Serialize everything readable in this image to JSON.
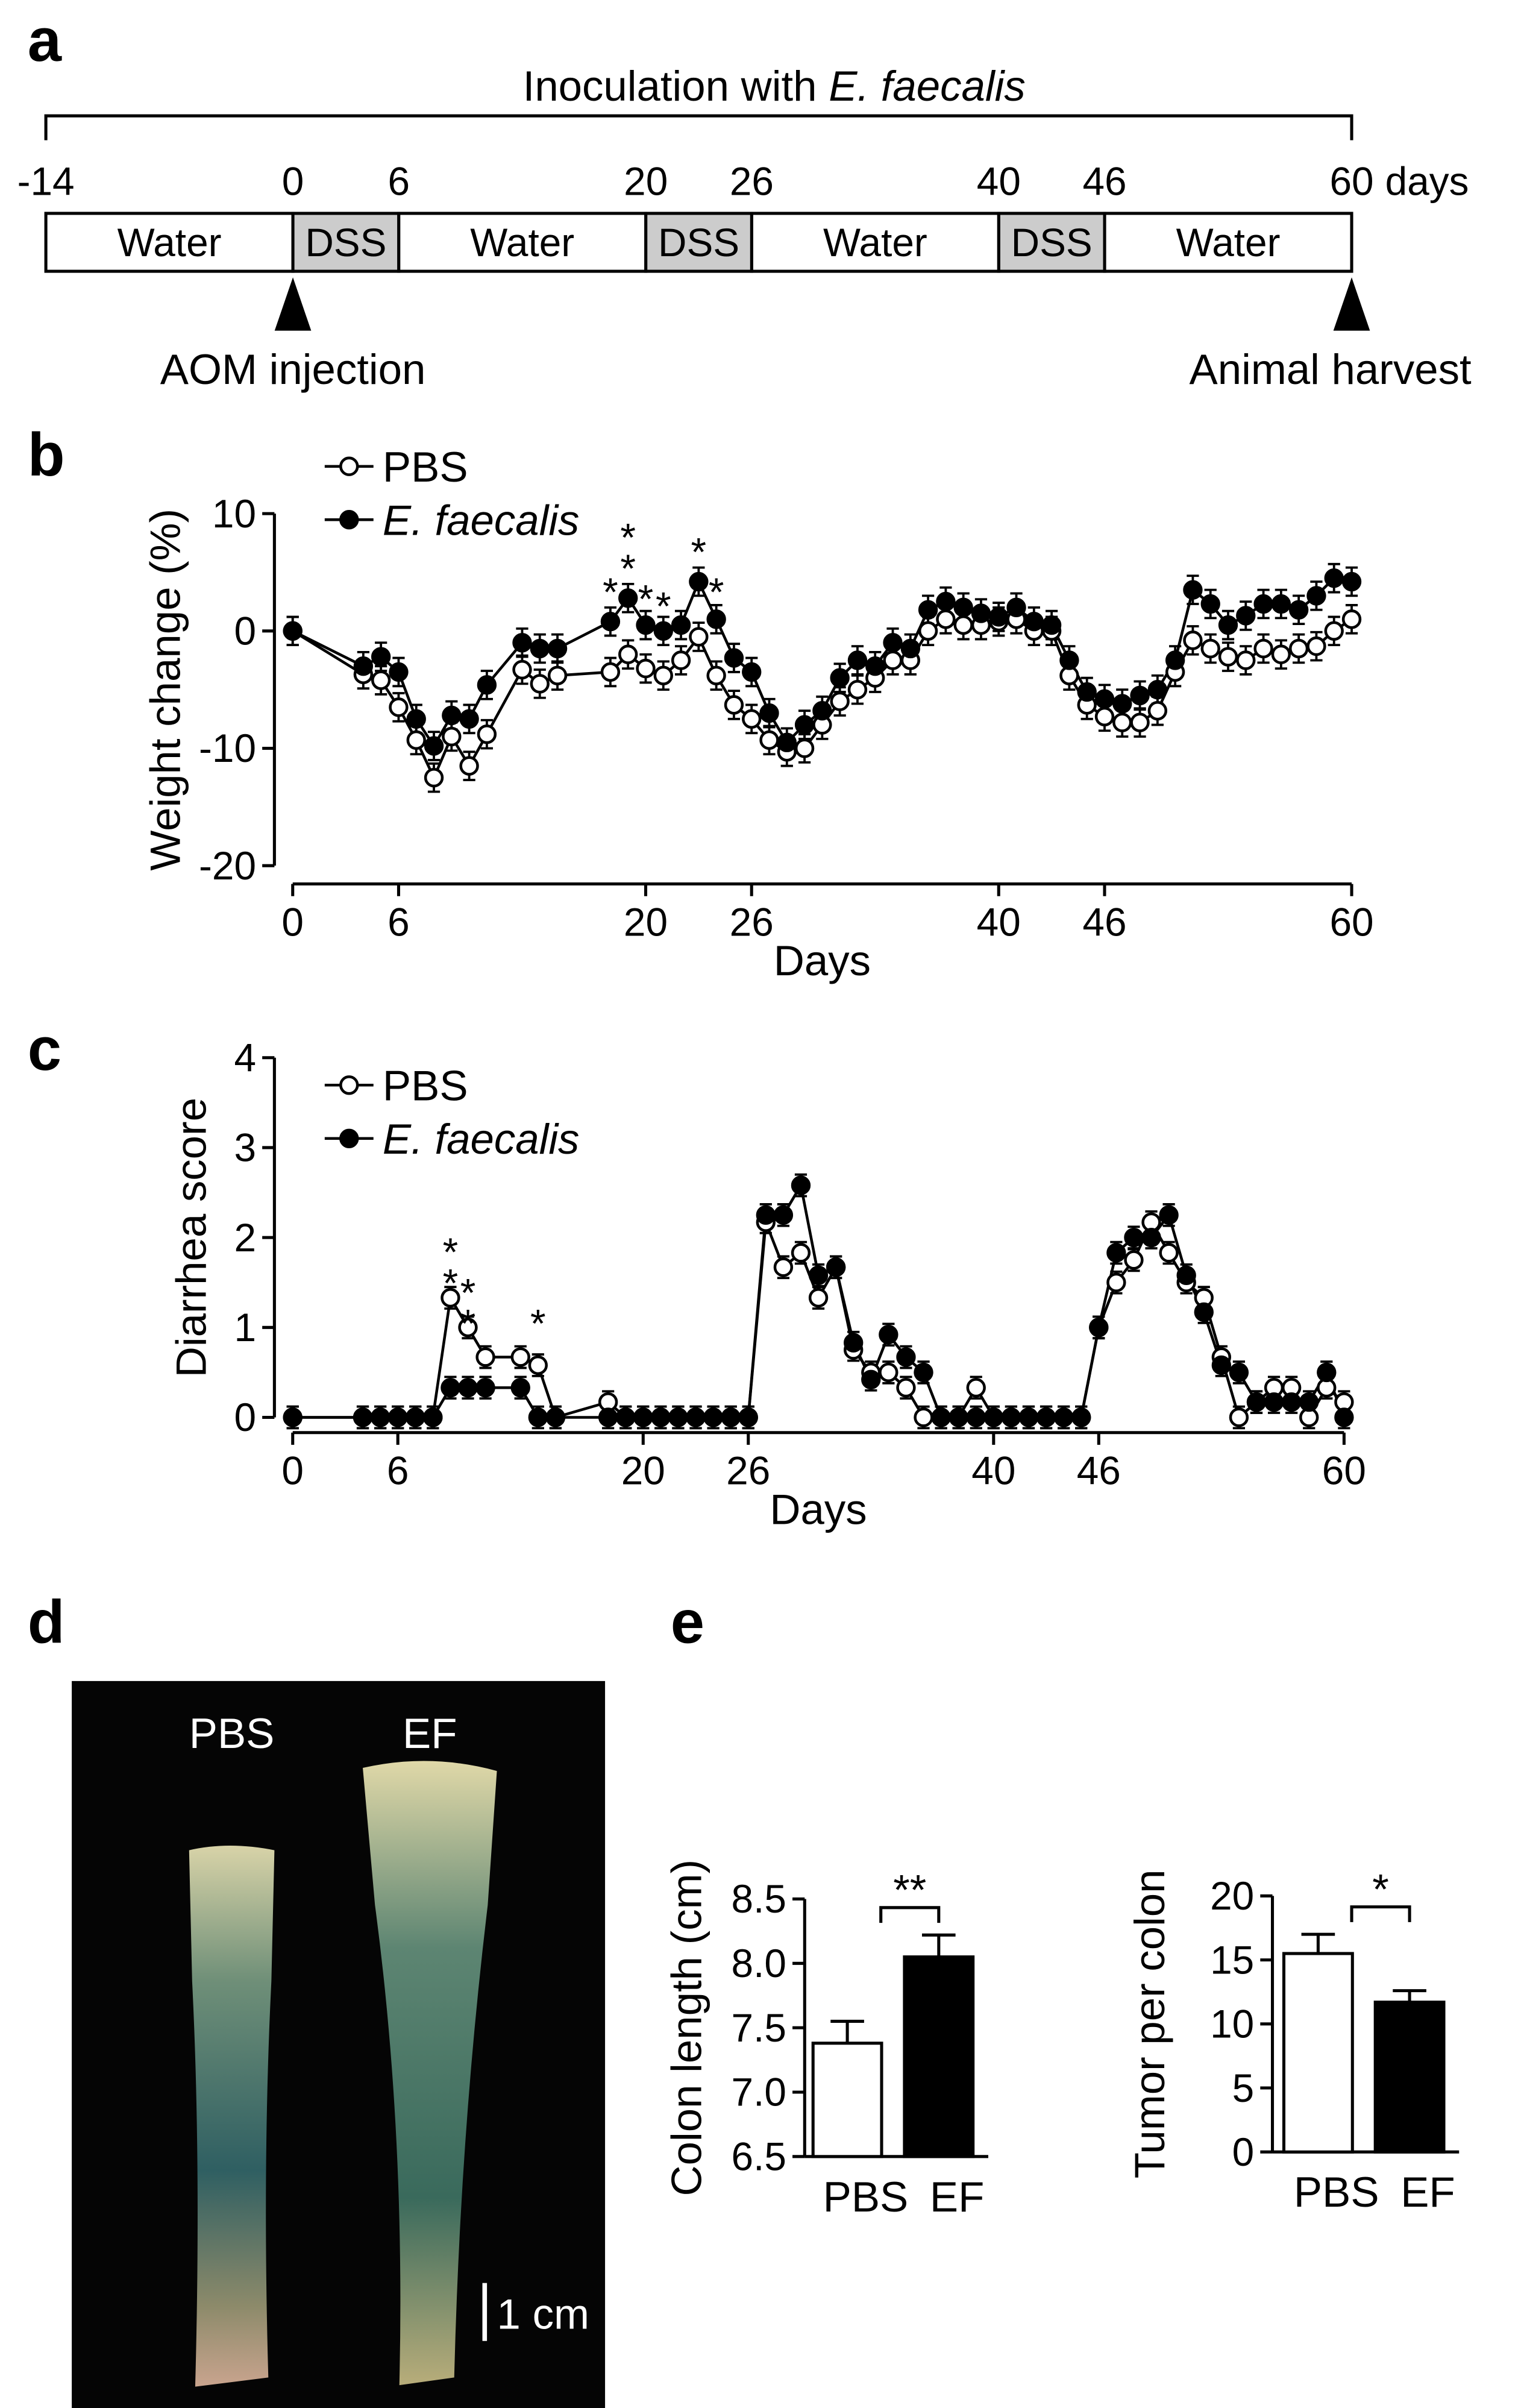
{
  "panel_labels": [
    "a",
    "b",
    "c",
    "d",
    "e"
  ],
  "timeline": {
    "title": "Inoculation with ",
    "title_italic": "E. faecalis",
    "ticks": [
      -14,
      0,
      6,
      20,
      26,
      40,
      46,
      60
    ],
    "unit": "days",
    "segments": [
      {
        "label": "Water",
        "start": -14,
        "end": 0,
        "color": "#ffffff"
      },
      {
        "label": "DSS",
        "start": 0,
        "end": 6,
        "color": "#cccccc"
      },
      {
        "label": "Water",
        "start": 6,
        "end": 20,
        "color": "#ffffff"
      },
      {
        "label": "DSS",
        "start": 20,
        "end": 26,
        "color": "#cccccc"
      },
      {
        "label": "Water",
        "start": 26,
        "end": 40,
        "color": "#ffffff"
      },
      {
        "label": "DSS",
        "start": 40,
        "end": 46,
        "color": "#cccccc"
      },
      {
        "label": "Water",
        "start": 46,
        "end": 60,
        "color": "#ffffff"
      }
    ],
    "events": [
      {
        "label": "AOM injection",
        "day": 0
      },
      {
        "label": "Animal harvest",
        "day": 60
      }
    ]
  },
  "photo": {
    "labels": [
      "PBS",
      "EF"
    ],
    "scale_bar": "1 cm"
  },
  "chart_data": [
    {
      "type": "line",
      "xlabel": "Days",
      "ylabel": "Weight change (%)",
      "x": [
        0,
        4,
        5,
        6,
        7,
        8,
        9,
        10,
        11,
        13,
        14,
        15,
        18,
        19,
        20,
        21,
        22,
        23,
        24,
        25,
        26,
        27,
        28,
        29,
        30,
        31,
        32,
        33,
        34,
        35,
        36,
        37,
        38,
        39,
        40,
        41,
        42,
        43,
        44,
        45,
        46,
        47,
        48,
        49,
        50,
        51,
        52,
        53,
        54,
        55,
        56,
        57,
        58,
        59,
        60
      ],
      "xlim": [
        0,
        60
      ],
      "xticks": [
        0,
        6,
        20,
        26,
        40,
        46,
        60
      ],
      "ylim": [
        -20,
        10
      ],
      "yticks": [
        -20,
        -10,
        0,
        10
      ],
      "legend": "upper left",
      "grid": false,
      "series": [
        {
          "name": "PBS",
          "color": "#ffffff",
          "error": 1.2,
          "values": [
            0,
            -3.7,
            -4.2,
            -6.5,
            -9.3,
            -12.5,
            -9,
            -11.5,
            -8.8,
            -3.3,
            -4.5,
            -3.8,
            -3.5,
            -2,
            -3.2,
            -3.8,
            -2.5,
            -0.5,
            -3.8,
            -6.3,
            -7.5,
            -9.3,
            -10.3,
            -10,
            -8,
            -6,
            -5,
            -4,
            -2.5,
            -2.5,
            0,
            1,
            0.5,
            0.5,
            0.8,
            1,
            0,
            0,
            -3.8,
            -6.3,
            -7.3,
            -7.8,
            -7.8,
            -6.8,
            -3.5,
            -0.8,
            -1.5,
            -2.2,
            -2.5,
            -1.5,
            -2,
            -1.5,
            -1.3,
            0,
            1
          ]
        },
        {
          "name": "E. faecalis",
          "color": "#000000",
          "error": 1.2,
          "values": [
            0,
            -3,
            -2.2,
            -3.5,
            -7.5,
            -9.8,
            -7.2,
            -7.5,
            -4.6,
            -1,
            -1.5,
            -1.5,
            0.8,
            2.8,
            0.5,
            0,
            0.5,
            4.2,
            1,
            -2.3,
            -3.5,
            -7,
            -9.5,
            -8,
            -6.8,
            -4,
            -2.5,
            -3,
            -1,
            -1.5,
            1.8,
            2.5,
            2,
            1.5,
            1.2,
            2,
            0.8,
            0.5,
            -2.5,
            -5.2,
            -5.8,
            -6.2,
            -5.5,
            -5,
            -2.5,
            3.5,
            2.3,
            0.5,
            1.3,
            2.3,
            2.3,
            1.8,
            3,
            4.5,
            4.2
          ]
        }
      ],
      "annotations": [
        {
          "x": 18,
          "y": 2.6,
          "text": "*"
        },
        {
          "x": 19,
          "y": 4.6,
          "text": "**"
        },
        {
          "x": 20,
          "y": 2.0,
          "text": "*"
        },
        {
          "x": 21,
          "y": 1.4,
          "text": "*"
        },
        {
          "x": 23,
          "y": 6.0,
          "text": "*"
        },
        {
          "x": 24,
          "y": 2.6,
          "text": "*"
        }
      ]
    },
    {
      "type": "line",
      "xlabel": "Days",
      "ylabel": "Diarrhea score",
      "x": [
        0,
        4,
        5,
        6,
        7,
        8,
        9,
        10,
        11,
        13,
        14,
        15,
        18,
        19,
        20,
        21,
        22,
        23,
        24,
        25,
        26,
        27,
        28,
        29,
        30,
        31,
        32,
        33,
        34,
        35,
        36,
        37,
        38,
        39,
        40,
        41,
        42,
        43,
        44,
        45,
        46,
        47,
        48,
        49,
        50,
        51,
        52,
        53,
        54,
        55,
        56,
        57,
        58,
        59,
        60
      ],
      "xlim": [
        0,
        60
      ],
      "xticks": [
        0,
        6,
        20,
        26,
        40,
        46,
        60
      ],
      "ylim": [
        0,
        4
      ],
      "yticks": [
        0,
        1,
        2,
        3,
        4
      ],
      "legend": "upper left",
      "grid": false,
      "series": [
        {
          "name": "PBS",
          "color": "#ffffff",
          "error": 0.12,
          "values": [
            0,
            0,
            0,
            0,
            0,
            0,
            1.33,
            1.0,
            0.67,
            0.67,
            0.58,
            0,
            0.17,
            0,
            0,
            0,
            0,
            0,
            0,
            0,
            0,
            2.17,
            1.67,
            1.83,
            1.33,
            1.67,
            0.75,
            0.5,
            0.5,
            0.33,
            0,
            0,
            0,
            0.33,
            0,
            0,
            0,
            0,
            0,
            0,
            1.0,
            1.5,
            1.75,
            2.17,
            1.83,
            1.5,
            1.33,
            0.67,
            0,
            0.17,
            0.33,
            0.33,
            0,
            0.33,
            0.17
          ]
        },
        {
          "name": "E. faecalis",
          "color": "#000000",
          "error": 0.12,
          "values": [
            0,
            0,
            0,
            0,
            0,
            0,
            0.33,
            0.33,
            0.33,
            0.33,
            0,
            0,
            0,
            0,
            0,
            0,
            0,
            0,
            0,
            0,
            0,
            2.25,
            2.25,
            2.58,
            1.58,
            1.67,
            0.83,
            0.42,
            0.92,
            0.67,
            0.5,
            0,
            0,
            0,
            0,
            0,
            0,
            0,
            0,
            0,
            1.0,
            1.83,
            2.0,
            2.0,
            2.25,
            1.58,
            1.17,
            0.58,
            0.5,
            0.17,
            0.17,
            0.17,
            0.17,
            0.5,
            0
          ]
        }
      ],
      "annotations": [
        {
          "x": 9,
          "y": 1.4,
          "text": "**"
        },
        {
          "x": 10,
          "y": 0.95,
          "text": "**"
        },
        {
          "x": 14,
          "y": 0.95,
          "text": "*"
        }
      ]
    },
    {
      "type": "bar",
      "ylabel": "Colon length (cm)",
      "categories": [
        "PBS",
        "EF"
      ],
      "values": [
        7.38,
        8.05
      ],
      "errors": [
        0.17,
        0.17
      ],
      "colors": [
        "#ffffff",
        "#000000"
      ],
      "ylim": [
        6.5,
        8.5
      ],
      "yticks": [
        6.5,
        {
          "value": 7,
          "label": "7.0"
        },
        7.5,
        {
          "value": 8,
          "label": "8.0"
        },
        8.5
      ],
      "significance": "**"
    },
    {
      "type": "bar",
      "ylabel": "Tumor per colon",
      "categories": [
        "PBS",
        "EF"
      ],
      "values": [
        15.5,
        11.7
      ],
      "errors": [
        1.5,
        0.9
      ],
      "colors": [
        "#ffffff",
        "#000000"
      ],
      "ylim": [
        0,
        20
      ],
      "yticks": [
        0,
        5,
        10,
        15,
        20
      ],
      "significance": "*"
    }
  ]
}
